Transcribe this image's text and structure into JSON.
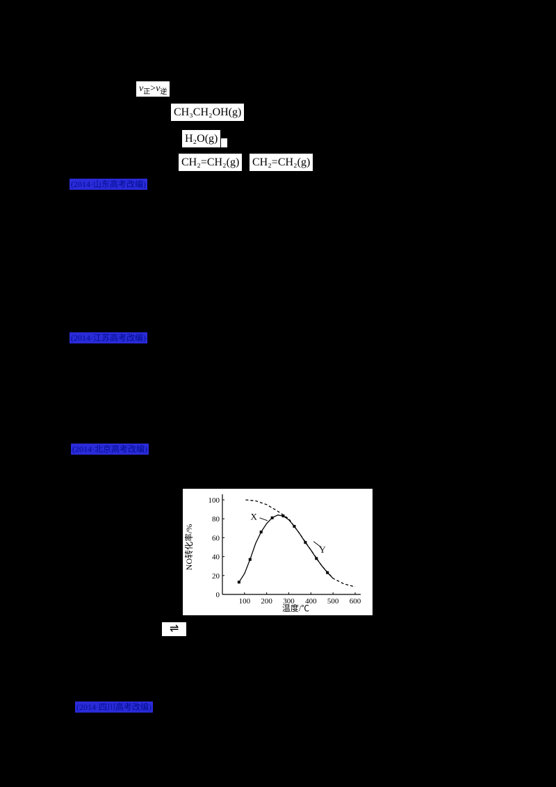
{
  "page": {
    "background": "#000000",
    "panel_background": "#ffffff"
  },
  "colors": {
    "tag_background": "#2b2bd9",
    "tag_text": "#000f8e",
    "curve": "#000000"
  },
  "formulas": {
    "rate_compare": {
      "v1": "v",
      "sub1": "正",
      "op": ">",
      "v2": "v",
      "sub2": "逆"
    },
    "ethanol": "CH₃CH₂OH(g)",
    "water": "H₂O(g)",
    "fragment": "",
    "ethylene_1": "CH₂=CH₂(g)",
    "ethylene_2": "CH₂=CH₂(g)",
    "equilibrium_arrow": "⇌"
  },
  "source_tags": [
    {
      "label": "(2014·山东高考改编)"
    },
    {
      "label": "(2014·江苏高考改编)"
    },
    {
      "label": "(2014·北京高考改编)"
    },
    {
      "label": "(2014·四川高考改编)"
    }
  ],
  "chart_data": {
    "type": "line",
    "title": "",
    "xlabel": "温度/℃",
    "ylabel": "NO转化率/%",
    "xlim": [
      0,
      600
    ],
    "ylim": [
      0,
      100
    ],
    "xticks": [
      100,
      200,
      300,
      400,
      500,
      600
    ],
    "yticks": [
      0,
      20,
      40,
      60,
      80,
      100
    ],
    "grid": false,
    "legend_position": "none",
    "series": [
      {
        "name": "X",
        "style": "solid",
        "marker": "square",
        "points": [
          [
            75,
            13
          ],
          [
            100,
            22
          ],
          [
            125,
            37
          ],
          [
            150,
            54
          ],
          [
            175,
            66
          ],
          [
            200,
            75
          ],
          [
            225,
            81
          ],
          [
            250,
            84
          ],
          [
            275,
            83
          ],
          [
            300,
            79
          ],
          [
            325,
            72
          ],
          [
            350,
            64
          ],
          [
            375,
            55
          ],
          [
            400,
            47
          ],
          [
            425,
            38
          ],
          [
            450,
            30
          ],
          [
            475,
            23
          ],
          [
            500,
            17
          ]
        ]
      },
      {
        "name": "Y",
        "style": "dashed",
        "marker": "none",
        "points": [
          [
            105,
            100
          ],
          [
            150,
            99
          ],
          [
            200,
            95
          ],
          [
            250,
            88
          ],
          [
            300,
            80
          ],
          [
            325,
            72
          ],
          [
            350,
            64
          ],
          [
            400,
            47
          ],
          [
            450,
            30
          ],
          [
            500,
            17
          ],
          [
            550,
            11
          ],
          [
            600,
            8
          ]
        ]
      }
    ],
    "annotations": [
      {
        "text": "X",
        "x": 142,
        "y": 82,
        "leader": [
          168,
          81,
          204,
          78
        ]
      },
      {
        "text": "Y",
        "x": 452,
        "y": 47,
        "leader": [
          446,
          50,
          412,
          56
        ]
      }
    ]
  }
}
